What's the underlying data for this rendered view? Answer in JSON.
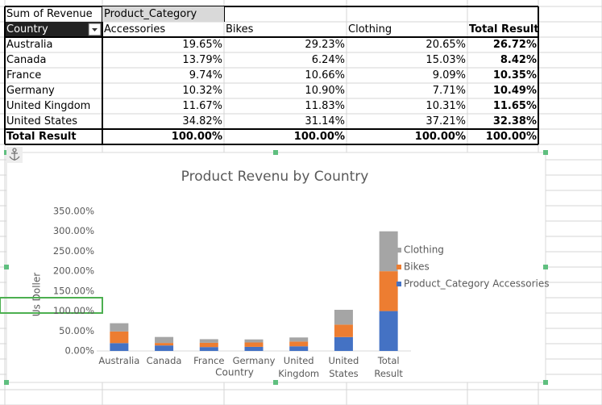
{
  "pivot": {
    "corner": "Sum of Revenue",
    "column_field": "Product_Category",
    "row_field": "Country",
    "columns": [
      "Accessories",
      "Bikes",
      "Clothing",
      "Total Result"
    ],
    "rows": [
      [
        "Australia",
        "19.65%",
        "29.23%",
        "20.65%",
        "26.72%"
      ],
      [
        "Canada",
        "13.79%",
        "6.24%",
        "15.03%",
        "8.42%"
      ],
      [
        "France",
        "9.74%",
        "10.66%",
        "9.09%",
        "10.35%"
      ],
      [
        "Germany",
        "10.32%",
        "10.90%",
        "7.71%",
        "10.49%"
      ],
      [
        "United Kingdom",
        "11.67%",
        "11.83%",
        "10.31%",
        "11.65%"
      ],
      [
        "United States",
        "34.82%",
        "31.14%",
        "37.21%",
        "32.38%"
      ],
      [
        "Total Result",
        "100.00%",
        "100.00%",
        "100.00%",
        "100.00%"
      ]
    ]
  },
  "chart_data": {
    "type": "stacked_bar",
    "title": "Product Revenu by Country",
    "x_label": "Country",
    "y_label": "Us Doller",
    "categories": [
      "Australia",
      "Canada",
      "France",
      "Germany",
      "United Kingdom",
      "United States",
      "Total Result"
    ],
    "series": [
      {
        "name": "Product_Category Accessories",
        "color": "#4472c4",
        "values": [
          19.65,
          13.79,
          9.74,
          10.32,
          11.67,
          34.82,
          100
        ]
      },
      {
        "name": "Bikes",
        "color": "#ed7d31",
        "values": [
          29.23,
          6.24,
          10.66,
          10.9,
          11.83,
          31.14,
          100
        ]
      },
      {
        "name": "Clothing",
        "color": "#a5a5a5",
        "values": [
          20.65,
          15.03,
          9.09,
          7.71,
          10.31,
          37.21,
          100
        ]
      }
    ],
    "ylim": [
      0,
      350
    ],
    "yticks": [
      {
        "value": 0,
        "label": "0.00%"
      },
      {
        "value": 50,
        "label": "50.00%"
      },
      {
        "value": 100,
        "label": "100.00%"
      },
      {
        "value": 150,
        "label": "150.00%"
      },
      {
        "value": 200,
        "label": "200.00%"
      },
      {
        "value": 250,
        "label": "250.00%"
      },
      {
        "value": 300,
        "label": "300.00%"
      },
      {
        "value": 350,
        "label": "350.00%"
      }
    ],
    "grid": false,
    "legend": "right"
  }
}
